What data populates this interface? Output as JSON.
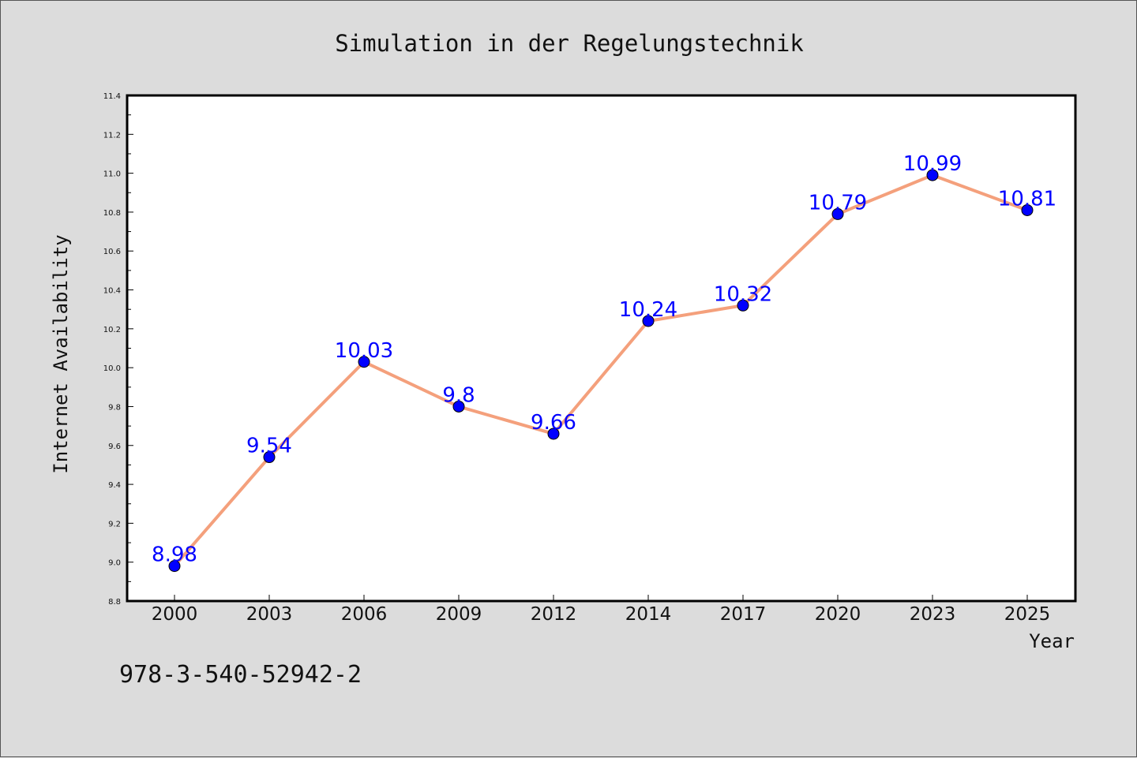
{
  "chart_data": {
    "type": "line",
    "title": "Simulation in der Regelungstechnik",
    "xlabel": "Year",
    "ylabel": "Internet Availability",
    "categories": [
      "2000",
      "2003",
      "2006",
      "2009",
      "2012",
      "2014",
      "2017",
      "2020",
      "2023",
      "2025"
    ],
    "series": [
      {
        "values": [
          8.98,
          9.54,
          10.03,
          9.8,
          9.66,
          10.24,
          10.32,
          10.79,
          10.99,
          10.81
        ],
        "data_labels": [
          "8.98",
          "9.54",
          "10.03",
          "9.8",
          "9.66",
          "10.24",
          "10.32",
          "10.79",
          "10.99",
          "10.81"
        ],
        "line_color": "#f4a07c",
        "marker_color": "#0000ff"
      }
    ],
    "ylim": [
      8.8,
      11.4
    ],
    "yticks": [
      "8.8",
      "9.0",
      "9.2",
      "9.4",
      "9.6",
      "9.8",
      "10.0",
      "10.2",
      "10.4",
      "10.6",
      "10.8",
      "11.0",
      "11.2",
      "11.4"
    ],
    "grid": false,
    "legend": "none"
  },
  "footnote": "978-3-540-52942-2",
  "colors": {
    "background": "#dcdcdc",
    "plot_area": "#ffffff",
    "line": "#f4a07c",
    "marker": "#0000ff",
    "data_label": "#0000ff"
  }
}
